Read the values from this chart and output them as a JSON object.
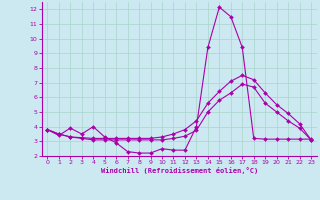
{
  "xlabel": "Windchill (Refroidissement éolien,°C)",
  "background_color": "#cce8f0",
  "grid_color": "#aad4cc",
  "line_color": "#aa00aa",
  "xlim": [
    -0.5,
    23.5
  ],
  "ylim": [
    2,
    12.5
  ],
  "yticks": [
    2,
    3,
    4,
    5,
    6,
    7,
    8,
    9,
    10,
    11,
    12
  ],
  "xticks": [
    0,
    1,
    2,
    3,
    4,
    5,
    6,
    7,
    8,
    9,
    10,
    11,
    12,
    13,
    14,
    15,
    16,
    17,
    18,
    19,
    20,
    21,
    22,
    23
  ],
  "line1_x": [
    0,
    1,
    2,
    3,
    4,
    5,
    6,
    7,
    8,
    9,
    10,
    11,
    12,
    13,
    14,
    15,
    16,
    17,
    18,
    19,
    20,
    21,
    22,
    23
  ],
  "line1_y": [
    3.8,
    3.4,
    3.9,
    3.5,
    4.0,
    3.3,
    2.9,
    2.3,
    2.2,
    2.2,
    2.5,
    2.4,
    2.4,
    4.0,
    9.4,
    12.15,
    11.5,
    9.4,
    3.2,
    3.15,
    3.15,
    3.15,
    3.15,
    3.15
  ],
  "line2_x": [
    0,
    1,
    2,
    3,
    4,
    5,
    6,
    7,
    8,
    9,
    10,
    11,
    12,
    13,
    14,
    15,
    16,
    17,
    18,
    19,
    20,
    21,
    22,
    23
  ],
  "line2_y": [
    3.8,
    3.5,
    3.3,
    3.25,
    3.2,
    3.2,
    3.2,
    3.2,
    3.2,
    3.2,
    3.3,
    3.5,
    3.8,
    4.4,
    5.6,
    6.4,
    7.1,
    7.5,
    7.2,
    6.3,
    5.5,
    4.9,
    4.2,
    3.1
  ],
  "line3_x": [
    0,
    1,
    2,
    3,
    4,
    5,
    6,
    7,
    8,
    9,
    10,
    11,
    12,
    13,
    14,
    15,
    16,
    17,
    18,
    19,
    20,
    21,
    22,
    23
  ],
  "line3_y": [
    3.8,
    3.5,
    3.3,
    3.2,
    3.1,
    3.1,
    3.1,
    3.1,
    3.1,
    3.1,
    3.1,
    3.2,
    3.35,
    3.75,
    5.0,
    5.8,
    6.3,
    6.9,
    6.7,
    5.6,
    5.0,
    4.4,
    3.9,
    3.1
  ]
}
